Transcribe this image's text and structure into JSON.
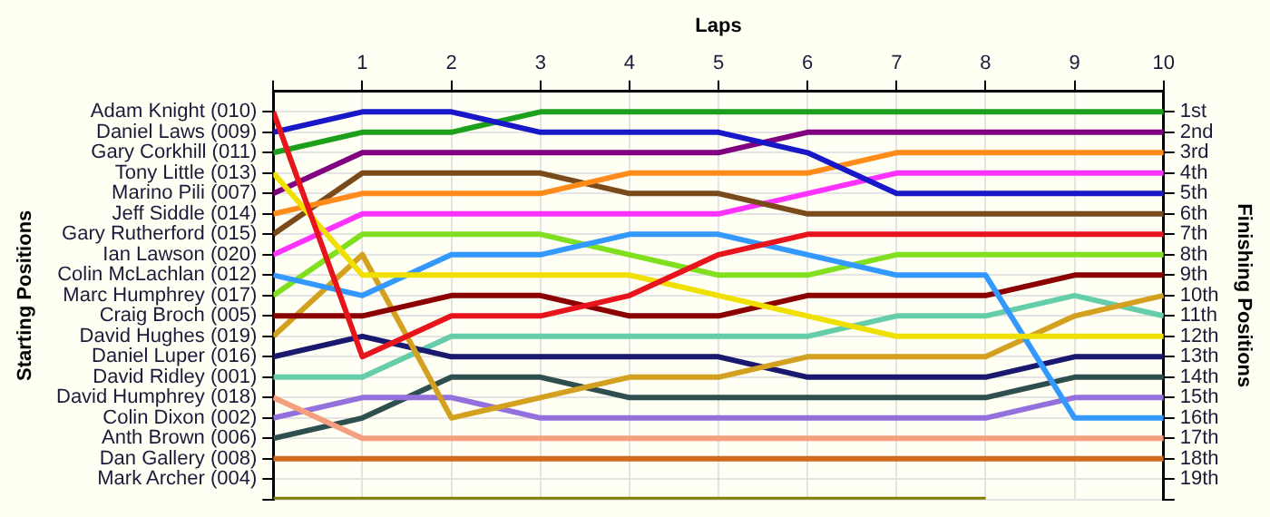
{
  "chart_data": {
    "type": "line",
    "xlabel": "Laps",
    "y2label": "Finishing Positions",
    "x": [
      0,
      1,
      2,
      3,
      4,
      5,
      6,
      7,
      8,
      9,
      10
    ],
    "xlim": [
      0,
      10
    ],
    "xticks": [
      {
        "value": 0,
        "label": null
      },
      1,
      2,
      3,
      4,
      5,
      6,
      7,
      8,
      9,
      10
    ],
    "ylim": [
      20,
      0
    ],
    "yticks": [
      {
        "value": 1,
        "label": "1st"
      },
      {
        "value": 2,
        "label": "2nd"
      },
      {
        "value": 3,
        "label": "3rd"
      },
      {
        "value": 4,
        "label": "4th"
      },
      {
        "value": 5,
        "label": "5th"
      },
      {
        "value": 6,
        "label": "6th"
      },
      {
        "value": 7,
        "label": "7th"
      },
      {
        "value": 8,
        "label": "8th"
      },
      {
        "value": 9,
        "label": "9th"
      },
      {
        "value": 10,
        "label": "10th"
      },
      {
        "value": 11,
        "label": "11th"
      },
      {
        "value": 12,
        "label": "12th"
      },
      {
        "value": 13,
        "label": "13th"
      },
      {
        "value": 14,
        "label": "14th"
      },
      {
        "value": 15,
        "label": "15th"
      },
      {
        "value": 16,
        "label": "16th"
      },
      {
        "value": 17,
        "label": "17th"
      },
      {
        "value": 18,
        "label": "18th"
      },
      {
        "value": 19,
        "label": "19th"
      },
      {
        "value": 20,
        "label": null
      }
    ],
    "annotations": [
      "Starting Positions",
      "Mark Archer (004)"
    ],
    "grid": true,
    "legend": false,
    "series": [
      {
        "name": "Adam Knight (010)",
        "color": "#e8141c",
        "values": [
          1,
          13,
          11,
          11,
          10,
          8,
          7,
          7,
          7,
          7,
          7
        ]
      },
      {
        "name": "Daniel Laws (009)",
        "color": "#1818c8",
        "values": [
          2,
          1,
          1,
          2,
          2,
          2,
          3,
          5,
          5,
          5,
          5
        ]
      },
      {
        "name": "Gary Corkhill (011)",
        "color": "#1ca01c",
        "values": [
          3,
          2,
          2,
          1,
          1,
          1,
          1,
          1,
          1,
          1,
          1
        ]
      },
      {
        "name": "Tony Little (013)",
        "color": "#f0e000",
        "values": [
          4,
          9,
          9,
          9,
          9,
          10,
          11,
          12,
          12,
          12,
          12
        ]
      },
      {
        "name": "Marino Pili (007)",
        "color": "#800080",
        "values": [
          5,
          3,
          3,
          3,
          3,
          3,
          2,
          2,
          2,
          2,
          2
        ]
      },
      {
        "name": "Jeff Siddle (014)",
        "color": "#ff8c1a",
        "values": [
          6,
          5,
          5,
          5,
          4,
          4,
          4,
          3,
          3,
          3,
          3
        ]
      },
      {
        "name": "Gary Rutherford (015)",
        "color": "#7a4a1a",
        "values": [
          7,
          4,
          4,
          4,
          5,
          5,
          6,
          6,
          6,
          6,
          6
        ]
      },
      {
        "name": "Ian Lawson (020)",
        "color": "#ff33ff",
        "values": [
          8,
          6,
          6,
          6,
          6,
          6,
          5,
          4,
          4,
          4,
          4
        ]
      },
      {
        "name": "Colin McLachlan (012)",
        "color": "#3399ff",
        "values": [
          9,
          10,
          8,
          8,
          7,
          7,
          8,
          9,
          9,
          16,
          16
        ]
      },
      {
        "name": "Marc Humphrey (017)",
        "color": "#80e020",
        "values": [
          10,
          7,
          7,
          7,
          8,
          9,
          9,
          8,
          8,
          8,
          8
        ]
      },
      {
        "name": "Craig Broch (005)",
        "color": "#8b0000",
        "values": [
          11,
          11,
          10,
          10,
          11,
          11,
          10,
          10,
          10,
          9,
          9
        ]
      },
      {
        "name": "David Hughes (019)",
        "color": "#d4a020",
        "values": [
          12,
          8,
          16,
          15,
          14,
          14,
          13,
          13,
          13,
          11,
          10
        ]
      },
      {
        "name": "Daniel Luper (016)",
        "color": "#191970",
        "values": [
          13,
          12,
          13,
          13,
          13,
          13,
          14,
          14,
          14,
          13,
          13
        ]
      },
      {
        "name": "David Ridley (001)",
        "color": "#66cdaa",
        "values": [
          14,
          14,
          12,
          12,
          12,
          12,
          12,
          11,
          11,
          10,
          11
        ]
      },
      {
        "name": "David Humphrey (018)",
        "color": "#f4a080",
        "values": [
          15,
          17,
          17,
          17,
          17,
          17,
          17,
          17,
          17,
          17,
          17
        ]
      },
      {
        "name": "Colin Dixon (002)",
        "color": "#9370db",
        "values": [
          16,
          15,
          15,
          16,
          16,
          16,
          16,
          16,
          16,
          15,
          15
        ]
      },
      {
        "name": "Anth Brown (006)",
        "color": "#2f4f4f",
        "values": [
          17,
          16,
          14,
          14,
          15,
          15,
          15,
          15,
          15,
          14,
          14
        ]
      },
      {
        "name": "Dan Gallery (008)",
        "color": "#d2691e",
        "values": [
          18,
          18,
          18,
          18,
          18,
          18,
          18,
          18,
          18,
          18,
          18
        ]
      },
      {
        "color": "#808000",
        "values": [
          20,
          20,
          20,
          20,
          20,
          20,
          20,
          20,
          20,
          null,
          null
        ]
      }
    ]
  }
}
